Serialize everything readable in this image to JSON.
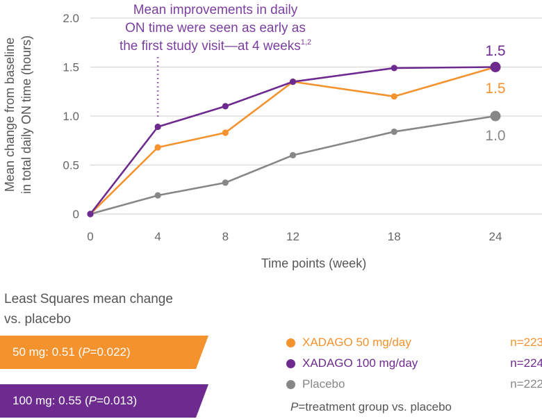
{
  "chart_data": {
    "type": "line",
    "title": "",
    "xlabel": "Time points (week)",
    "ylabel_lines": [
      "Mean change from baseline",
      "in total daily ON time (hours)"
    ],
    "x": [
      0,
      4,
      8,
      12,
      18,
      24
    ],
    "x_tick_labels": [
      "0",
      "4",
      "8",
      "12",
      "18",
      "24"
    ],
    "y_ticks": [
      0,
      0.5,
      1.0,
      1.5,
      2.0
    ],
    "y_tick_labels": [
      "0",
      "0.5",
      "1.0",
      "1.5",
      "2.0"
    ],
    "ylim": [
      0,
      2.0
    ],
    "xlim": [
      0,
      24
    ],
    "grid": "horizontal",
    "series": [
      {
        "name": "Placebo",
        "color": "#878787",
        "values": [
          0,
          0.19,
          0.32,
          0.6,
          0.84,
          1.0
        ],
        "end_label": "1.0"
      },
      {
        "name": "XADAGO 50 mg/day",
        "color": "#f4922d",
        "values": [
          0,
          0.68,
          0.83,
          1.35,
          1.2,
          1.5
        ],
        "end_label": "1.5"
      },
      {
        "name": "XADAGO 100 mg/day",
        "color": "#6e2b8f",
        "values": [
          0,
          0.89,
          1.1,
          1.35,
          1.49,
          1.5
        ],
        "end_label": "1.5"
      }
    ],
    "annotation": {
      "lines": [
        "Mean improvements in daily",
        "ON time were seen as early as",
        "the first study visit—at 4 weeks"
      ],
      "superscript": "1,2",
      "x": 4,
      "color": "#7b3fa0"
    }
  },
  "ls_box": {
    "title_lines": [
      "Least Squares mean change",
      "vs. placebo"
    ],
    "items": [
      {
        "label": "50 mg: 0.51 (",
        "p": "P",
        "value": "=0.022)"
      },
      {
        "label": "100 mg: 0.55 (",
        "p": "P",
        "value": "=0.013)"
      }
    ]
  },
  "legend": [
    {
      "name": "XADAGO 50 mg/day",
      "n": "n=223",
      "color": "#f4922d"
    },
    {
      "name": "XADAGO 100 mg/day",
      "n": "n=224",
      "color": "#6e2b8f"
    },
    {
      "name": "Placebo",
      "n": "n=222",
      "color": "#878787"
    }
  ],
  "footnote": {
    "p": "P",
    "text": "=treatment group vs. placebo"
  }
}
